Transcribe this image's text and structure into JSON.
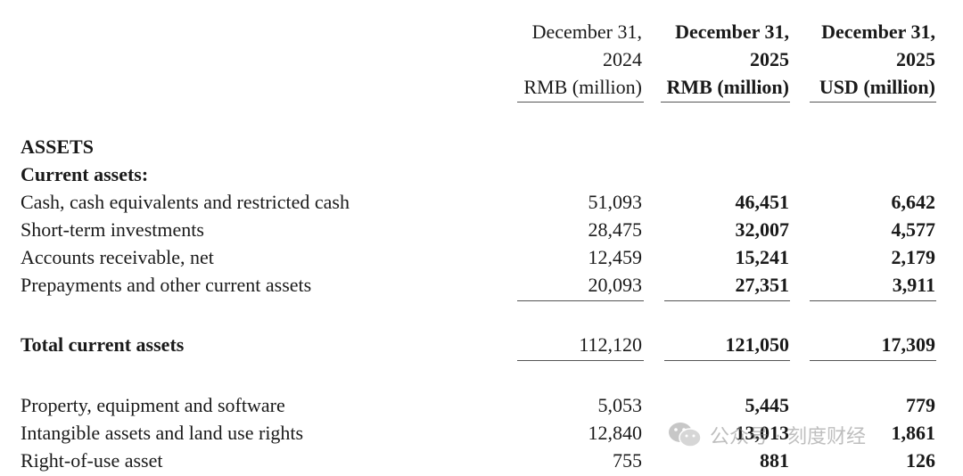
{
  "columns": [
    {
      "line1": "December 31,",
      "line2": "2024",
      "line3": "RMB (million)"
    },
    {
      "line1": "December 31,",
      "line2": "2025",
      "line3": "RMB (million)"
    },
    {
      "line1": "December 31,",
      "line2": "2025",
      "line3": "USD (million)"
    }
  ],
  "section_title": "ASSETS",
  "subsection_title": "Current assets:",
  "current_rows": [
    {
      "label": "Cash, cash equivalents and restricted cash",
      "v2024": "51,093",
      "v2025rmb": "46,451",
      "v2025usd": "6,642"
    },
    {
      "label": "Short-term investments",
      "v2024": "28,475",
      "v2025rmb": "32,007",
      "v2025usd": "4,577"
    },
    {
      "label": "Accounts receivable, net",
      "v2024": "12,459",
      "v2025rmb": "15,241",
      "v2025usd": "2,179"
    },
    {
      "label": "Prepayments and other current assets",
      "v2024": "20,093",
      "v2025rmb": "27,351",
      "v2025usd": "3,911"
    }
  ],
  "total_row": {
    "label": "Total current assets",
    "v2024": "112,120",
    "v2025rmb": "121,050",
    "v2025usd": "17,309"
  },
  "other_rows": [
    {
      "label": "Property, equipment and software",
      "v2024": "5,053",
      "v2025rmb": "5,445",
      "v2025usd": "779"
    },
    {
      "label": "Intangible assets and land use rights",
      "v2024": "12,840",
      "v2025rmb": "13,013",
      "v2025usd": "1,861"
    },
    {
      "label": "Right-of-use asset",
      "v2024": "755",
      "v2025rmb": "881",
      "v2025usd": "126"
    }
  ],
  "watermark": {
    "text": "公众号 · 刻度财经",
    "icon": "wechat-icon"
  }
}
